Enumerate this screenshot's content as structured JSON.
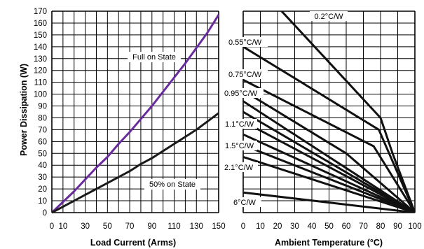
{
  "chart_data": [
    {
      "type": "line",
      "xlabel": "Load Current (Arms)",
      "ylabel": "Power Dissipation (W)",
      "xlim": [
        0,
        150
      ],
      "ylim": [
        0,
        170
      ],
      "x_ticks": [
        "0",
        "10",
        "30",
        "50",
        "70",
        "90",
        "110",
        "130",
        "150"
      ],
      "y_ticks": [
        "0",
        "10",
        "20",
        "30",
        "40",
        "50",
        "60",
        "70",
        "80",
        "90",
        "100",
        "110",
        "120",
        "130",
        "140",
        "150",
        "160",
        "170"
      ],
      "grid": true,
      "series": [
        {
          "name": "Full on State",
          "color": "#6a2c9c",
          "x": [
            0,
            10,
            20,
            30,
            40,
            50,
            60,
            70,
            80,
            90,
            100,
            110,
            120,
            130,
            140,
            150
          ],
          "y": [
            0,
            9,
            18,
            28,
            38,
            47,
            58,
            68,
            79,
            90,
            102,
            114,
            126,
            139,
            152,
            167
          ]
        },
        {
          "name": "50% on State",
          "color": "#1a1a1a",
          "x": [
            0,
            10,
            20,
            30,
            40,
            50,
            60,
            70,
            80,
            90,
            100,
            110,
            120,
            130,
            140,
            150
          ],
          "y": [
            0,
            5,
            10,
            15,
            20,
            25,
            30,
            35,
            41,
            46,
            52,
            58,
            64,
            70,
            77,
            84
          ]
        }
      ]
    },
    {
      "type": "line",
      "xlabel": "Ambient Temperature (°C)",
      "xlim": [
        0,
        100
      ],
      "ylim": [
        0,
        170
      ],
      "x_ticks": [
        "0",
        "10",
        "20",
        "30",
        "40",
        "50",
        "60",
        "70",
        "80",
        "90",
        "100"
      ],
      "grid": true,
      "series": [
        {
          "name": "0.2°C/W",
          "x": [
            16,
            80,
            87,
            100
          ],
          "y": [
            180,
            80,
            50,
            0
          ]
        },
        {
          "name": "0.55°C/W",
          "x": [
            0,
            79,
            100
          ],
          "y": [
            140,
            70,
            0
          ]
        },
        {
          "name": "0.75°C/W",
          "x": [
            0,
            76,
            100
          ],
          "y": [
            112,
            56,
            0
          ]
        },
        {
          "name": "0.95°C/W",
          "x": [
            0,
            60,
            100
          ],
          "y": [
            103,
            50,
            0
          ]
        },
        {
          "name": "",
          "x": [
            0,
            100
          ],
          "y": [
            94,
            0
          ]
        },
        {
          "name": "",
          "x": [
            0,
            100
          ],
          "y": [
            85,
            0
          ]
        },
        {
          "name": "1.1°C/W",
          "x": [
            0,
            100
          ],
          "y": [
            77,
            0
          ]
        },
        {
          "name": "",
          "x": [
            0,
            100
          ],
          "y": [
            66,
            0
          ]
        },
        {
          "name": "1.5°C/W",
          "x": [
            0,
            100
          ],
          "y": [
            57,
            0
          ]
        },
        {
          "name": "2.1°C/W",
          "x": [
            0,
            100
          ],
          "y": [
            47,
            0
          ]
        },
        {
          "name": "6°C/W",
          "x": [
            0,
            100
          ],
          "y": [
            17,
            0
          ]
        }
      ]
    }
  ]
}
